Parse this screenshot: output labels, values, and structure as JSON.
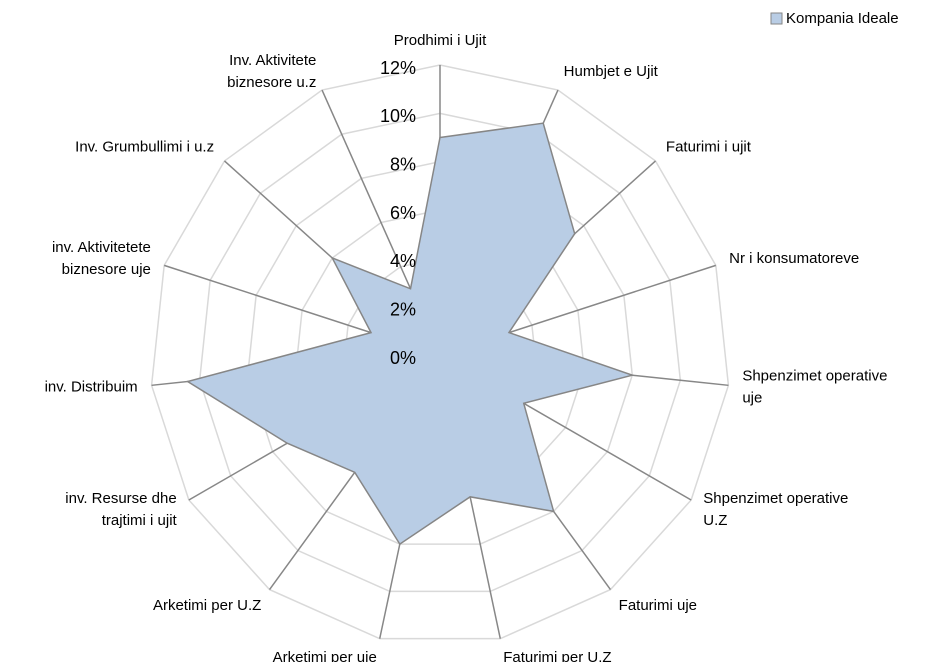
{
  "chart_data": {
    "type": "radar",
    "categories": [
      "Prodhimi i Ujit",
      "Humbjet e Ujit",
      "Faturimi i ujit",
      "Nr i konsumatoreve",
      "Shpenzimet operative\nuje",
      "Shpenzimet operative\nU.Z",
      "Faturimi uje",
      "Faturimi per U.Z",
      "Arketimi per uje",
      "Arketimi per U.Z",
      "inv. Resurse dhe\ntrajtimi i ujit",
      "inv. Distribuim",
      "inv. Aktivitetete\nbiznesore  uje",
      "Inv. Grumbullimi i u.z",
      "Inv. Aktivitete\nbiznesore  u.z"
    ],
    "series": [
      {
        "name": "Kompania Ideale",
        "color": "#b9cde5",
        "values": [
          9,
          10.5,
          7.5,
          3,
          8,
          4,
          8,
          6,
          8,
          6,
          7.3,
          10.5,
          3,
          6,
          3
        ]
      }
    ],
    "ylim": [
      0,
      12
    ],
    "yticks": [
      {
        "value": 0,
        "label": "0%"
      },
      {
        "value": 2,
        "label": "2%"
      },
      {
        "value": 4,
        "label": "4%"
      },
      {
        "value": 6,
        "label": "6%"
      },
      {
        "value": 8,
        "label": "8%"
      },
      {
        "value": 10,
        "label": "10%"
      },
      {
        "value": 12,
        "label": "12%"
      }
    ],
    "grid": true,
    "legend": "top-right"
  }
}
